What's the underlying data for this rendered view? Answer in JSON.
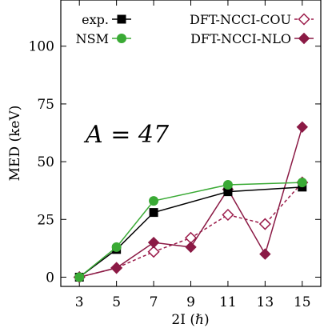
{
  "chart_data": {
    "type": "line",
    "x": [
      3,
      5,
      7,
      9,
      11,
      13,
      15
    ],
    "xticks": [
      "3",
      "5",
      "7",
      "9",
      "11",
      "13",
      "15"
    ],
    "yticks": [
      "0",
      "25",
      "50",
      "75",
      "100"
    ],
    "xlim": [
      2,
      16
    ],
    "ylim": [
      -4,
      120
    ],
    "xlabel": "2I (ℏ)",
    "ylabel": "MED (keV)",
    "annotation": "A = 47",
    "grid": false,
    "legend_position": "top",
    "series": [
      {
        "name": "exp.",
        "x": [
          3,
          5,
          7,
          11,
          15
        ],
        "values": [
          0,
          12,
          28,
          37,
          39
        ],
        "color": "#000000",
        "marker": "square",
        "line": "solid"
      },
      {
        "name": "NSM",
        "x": [
          3,
          5,
          7,
          11,
          15
        ],
        "values": [
          0,
          13,
          33,
          40,
          41
        ],
        "color": "#3aaa35",
        "marker": "circle",
        "line": "solid"
      },
      {
        "name": "DFT-NCCI-COU",
        "x": [
          3,
          5,
          7,
          9,
          11,
          13,
          15
        ],
        "values": [
          0,
          4,
          11,
          17,
          27,
          23,
          41
        ],
        "color": "#9b1b4a",
        "marker": "diamond-open",
        "line": "dashed"
      },
      {
        "name": "DFT-NCCI-NLO",
        "x": [
          3,
          5,
          7,
          9,
          11,
          13,
          15
        ],
        "values": [
          0,
          4,
          15,
          13,
          38,
          10,
          65
        ],
        "color": "#8b1a45",
        "marker": "diamond",
        "line": "solid"
      }
    ]
  }
}
